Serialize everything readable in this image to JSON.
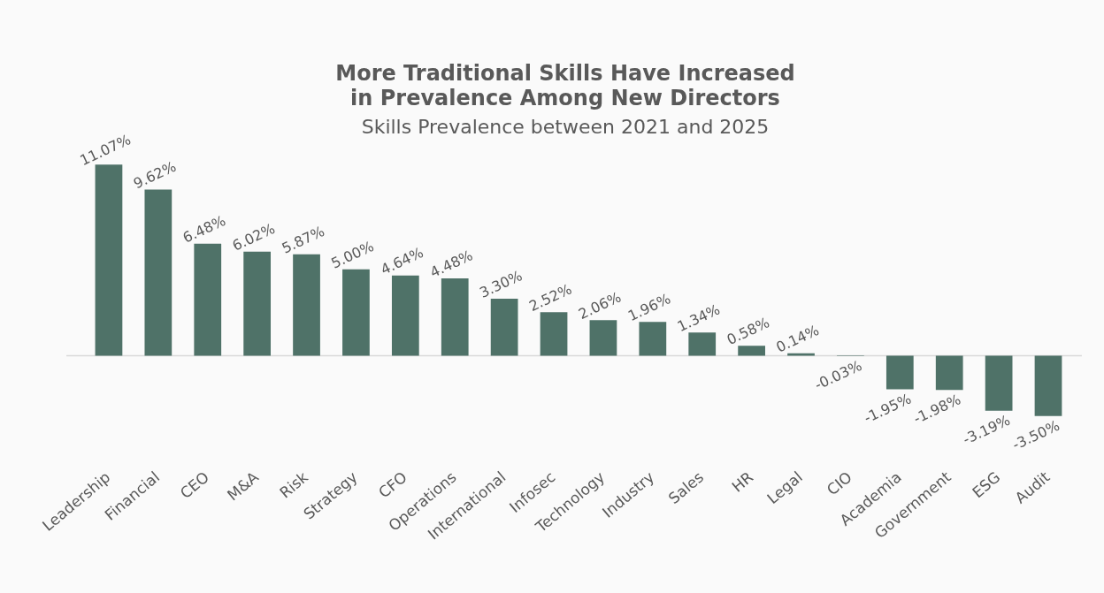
{
  "chart_data": {
    "type": "bar",
    "title": "More Traditional Skills Have Increased in Prevalence Among New Directors",
    "subtitle": "Skills Prevalence between 2021 and 2025",
    "categories": [
      "Leadership",
      "Financial",
      "CEO",
      "M&A",
      "Risk",
      "Strategy",
      "CFO",
      "Operations",
      "International",
      "Infosec",
      "Technology",
      "Industry",
      "Sales",
      "HR",
      "Legal",
      "CIO",
      "Academia",
      "Government",
      "ESG",
      "Audit"
    ],
    "values": [
      11.07,
      9.62,
      6.48,
      6.02,
      5.87,
      5.0,
      4.64,
      4.48,
      3.3,
      2.52,
      2.06,
      1.96,
      1.34,
      0.58,
      0.14,
      -0.03,
      -1.95,
      -1.98,
      -3.19,
      -3.5
    ],
    "value_labels": [
      "11.07%",
      "9.62%",
      "6.48%",
      "6.02%",
      "5.87%",
      "5.00%",
      "4.64%",
      "4.48%",
      "3.30%",
      "2.52%",
      "2.06%",
      "1.96%",
      "1.34%",
      "0.58%",
      "0.14%",
      "-0.03%",
      "-1.95%",
      "-1.98%",
      "-3.19%",
      "-3.50%"
    ],
    "color": "#4f7268",
    "grid": false,
    "legend": false
  }
}
